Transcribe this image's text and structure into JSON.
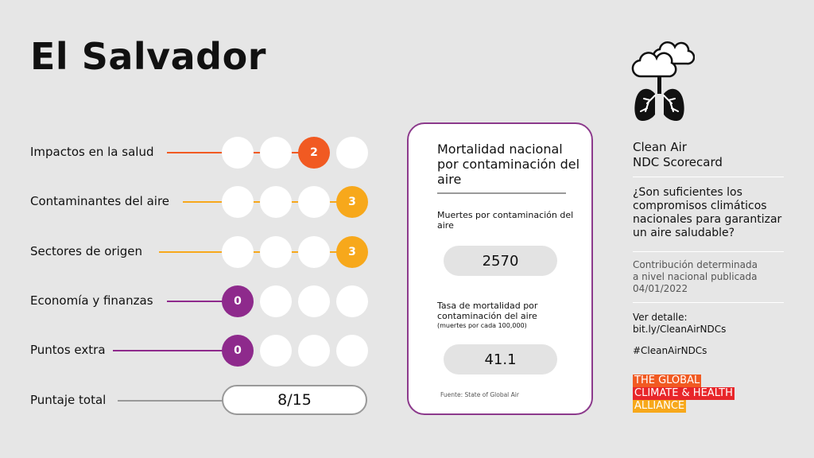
{
  "country": "El Salvador",
  "scores": [
    {
      "label": "Impactos en la salud",
      "value": "2",
      "active_index": 2,
      "color": "#f15a22"
    },
    {
      "label": "Contaminantes del aire",
      "value": "3",
      "active_index": 3,
      "color": "#f7a81b"
    },
    {
      "label": "Sectores de origen",
      "value": "3",
      "active_index": 3,
      "color": "#f7a81b"
    },
    {
      "label": "Economía y finanzas",
      "value": "0",
      "active_index": 0,
      "color": "#8e2a8c"
    },
    {
      "label": "Puntos extra",
      "value": "0",
      "active_index": 0,
      "color": "#8e2a8c"
    }
  ],
  "total": {
    "label": "Puntaje total",
    "value": "8/15",
    "color": "#999999"
  },
  "card": {
    "title": "Mortalidad nacional por contaminación del aire",
    "deaths_label": "Muertes por contaminación del aire",
    "deaths_value": "2570",
    "rate_label": "Tasa de mortalidad por contaminación del aire",
    "rate_note": "(muertes por cada 100,000)",
    "rate_value": "41.1",
    "source": "Fuente: State of Global Air",
    "border_color": "#8c3a8c"
  },
  "sidebar": {
    "title_line1": "Clean Air",
    "title_line2": "NDC Scorecard",
    "question": "¿Son suficientes los compromisos climáticos nacionales para garantizar un aire saludable?",
    "info_line1": "Contribución determinada",
    "info_line2": "a nivel nacional publicada",
    "info_line3": "04/01/2022",
    "detail_label": "Ver detalle:",
    "detail_link": "bit.ly/CleanAirNDCs",
    "hashtag": "#CleanAirNDCs"
  },
  "logo": {
    "line1": "THE GLOBAL",
    "line2": "CLIMATE & HEALTH",
    "line3": "ALLIANCE",
    "colors": [
      "#f15a22",
      "#e8262a",
      "#f7a81b"
    ]
  },
  "icons": {
    "header": "clouds-lungs-icon"
  }
}
